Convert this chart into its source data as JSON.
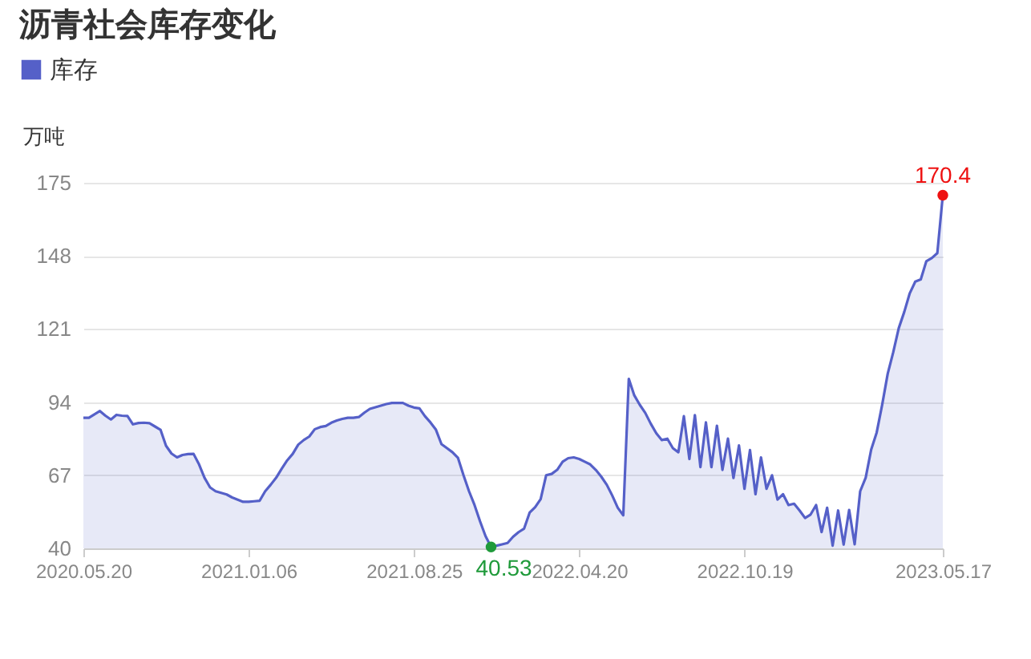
{
  "chart_data": {
    "type": "area",
    "title": "沥青社会库存变化",
    "ylabel": "万吨",
    "categories": [
      "2020.05.20",
      null,
      null,
      null,
      null,
      null,
      null,
      null,
      null,
      null,
      null,
      null,
      null,
      null,
      null,
      null,
      null,
      null,
      null,
      null,
      null,
      null,
      null,
      null,
      null,
      null,
      null,
      null,
      null,
      null,
      "2021.01.06",
      null,
      null,
      null,
      null,
      null,
      null,
      null,
      null,
      null,
      null,
      null,
      null,
      null,
      null,
      null,
      null,
      null,
      null,
      null,
      null,
      null,
      null,
      null,
      null,
      null,
      null,
      null,
      null,
      null,
      "2021.08.25",
      null,
      null,
      null,
      null,
      null,
      null,
      null,
      null,
      null,
      null,
      null,
      null,
      null,
      null,
      null,
      null,
      null,
      null,
      null,
      null,
      null,
      null,
      null,
      null,
      null,
      null,
      null,
      null,
      null,
      "2022.04.20",
      null,
      null,
      null,
      null,
      null,
      null,
      null,
      null,
      null,
      null,
      null,
      null,
      null,
      null,
      null,
      null,
      null,
      null,
      null,
      null,
      null,
      null,
      null,
      null,
      null,
      null,
      null,
      null,
      null,
      "2022.10.19",
      null,
      null,
      null,
      null,
      null,
      null,
      null,
      null,
      null,
      null,
      null,
      null,
      null,
      null,
      null,
      null,
      null,
      null,
      null,
      null,
      null,
      null,
      null,
      null,
      null,
      null,
      null,
      null,
      null,
      null,
      null,
      null,
      null,
      null,
      null,
      "2023.05.17"
    ],
    "series": [
      {
        "name": "库存",
        "color": "#5560c8",
        "values": [
          88.2,
          88.2,
          89.5,
          90.7,
          89.0,
          87.6,
          89.3,
          89.0,
          88.9,
          85.8,
          86.3,
          86.4,
          86.2,
          85.0,
          83.8,
          77.9,
          75.0,
          73.6,
          74.5,
          74.8,
          74.9,
          71.0,
          66.0,
          62.5,
          61.1,
          60.5,
          59.9,
          58.8,
          58.0,
          57.2,
          57.2,
          57.4,
          57.6,
          61.1,
          63.5,
          66.1,
          69.4,
          72.5,
          74.9,
          78.3,
          80.0,
          81.3,
          84.0,
          84.8,
          85.2,
          86.4,
          87.2,
          87.8,
          88.2,
          88.2,
          88.5,
          90.1,
          91.5,
          92.1,
          92.7,
          93.3,
          93.7,
          93.7,
          93.7,
          92.7,
          92.0,
          91.7,
          88.8,
          86.5,
          83.8,
          78.5,
          77.0,
          75.5,
          73.4,
          67.0,
          61.1,
          56.0,
          50.0,
          44.5,
          40.53,
          41.0,
          41.5,
          42.0,
          44.3,
          46.0,
          47.3,
          53.2,
          55.2,
          58.2,
          67.0,
          67.5,
          69.0,
          72.0,
          73.3,
          73.6,
          73.0,
          72.0,
          71.0,
          69.0,
          66.5,
          63.5,
          59.5,
          55.0,
          52.2,
          102.6,
          96.5,
          93.0,
          90.0,
          86.0,
          82.5,
          80.0,
          80.5,
          77.0,
          75.5,
          88.8,
          73.0,
          89.2,
          70.0,
          86.5,
          70.0,
          85.3,
          69.0,
          80.5,
          66.0,
          78.0,
          62.0,
          76.3,
          60.0,
          73.6,
          62.0,
          67.0,
          58.0,
          60.0,
          56.0,
          56.5,
          54.0,
          51.2,
          52.5,
          56.0,
          46.0,
          55.0,
          41.0,
          54.0,
          41.4,
          54.2,
          41.5,
          61.1,
          66.1,
          76.5,
          82.8,
          93.1,
          104.5,
          112.4,
          121.3,
          127.3,
          134.2,
          138.5,
          139.3,
          146.0,
          147.2,
          149.0,
          170.4
        ]
      }
    ],
    "ylim": [
      40,
      175
    ],
    "yticks": [
      40,
      67,
      94,
      121,
      148,
      175
    ],
    "grid": "y",
    "legend": "top left",
    "annotations": [
      {
        "text": "170.4",
        "x": "2023.05.17",
        "y": 170.4
      },
      {
        "text": "40.53",
        "y": 40.53
      }
    ]
  }
}
